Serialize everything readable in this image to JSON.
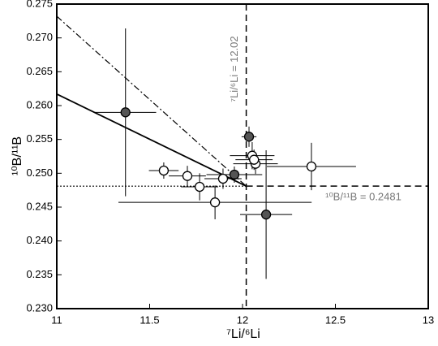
{
  "chart_data": {
    "type": "scatter",
    "x_label": "⁷Li/⁶Li",
    "y_label": "¹⁰B/¹¹B",
    "xlim": [
      11,
      13
    ],
    "ylim": [
      0.23,
      0.275
    ],
    "xticks": [
      11,
      11.5,
      12,
      12.5,
      13
    ],
    "yticks": [
      {
        "value": 0.23,
        "label": "0.230"
      },
      {
        "value": 0.235,
        "label": "0.235"
      },
      {
        "value": 0.24,
        "label": "0.240"
      },
      {
        "value": 0.245,
        "label": "0.245"
      },
      {
        "value": 0.25,
        "label": "0.250"
      },
      {
        "value": 0.255,
        "label": "0.255"
      },
      {
        "value": 0.26,
        "label": "0.260"
      },
      {
        "value": 0.265,
        "label": "0.265"
      },
      {
        "value": 0.27,
        "label": "0.270"
      },
      {
        "value": 0.275,
        "label": "0.275"
      }
    ],
    "series": [
      {
        "color": "#555555",
        "x": [
          11.37,
          12.035,
          11.956,
          12.127
        ],
        "y": [
          0.259,
          0.2554,
          0.2498,
          0.2439
        ],
        "xerr": [
          0.165,
          0.04,
          0.15,
          0.14
        ],
        "yerr": [
          0.0124,
          0.0015,
          0.0012,
          0.0095
        ]
      },
      {
        "color": "#ffffff",
        "x": [
          11.576,
          11.703,
          11.769,
          11.852,
          11.895,
          12.052,
          12.07,
          12.062,
          12.371
        ],
        "y": [
          0.2504,
          0.2496,
          0.248,
          0.2457,
          0.2492,
          0.2526,
          0.2514,
          0.252,
          0.251
        ],
        "xerr": [
          0.08,
          0.1,
          0.1,
          0.52,
          0.1,
          0.12,
          0.12,
          0.1,
          0.24
        ],
        "yerr": [
          0.0012,
          0.0015,
          0.002,
          0.0025,
          0.0015,
          0.002,
          0.0015,
          0.0015,
          0.0035
        ]
      }
    ],
    "lines": [
      {
        "style": "solid",
        "x": [
          11,
          12.02
        ],
        "y": [
          0.2617,
          0.2481
        ]
      },
      {
        "style": "dashdot",
        "x": [
          11,
          12.02
        ],
        "y": [
          0.2732,
          0.2481
        ]
      }
    ],
    "reference_lines": [
      {
        "orientation": "vertical",
        "value": 12.02,
        "label": "⁷Li/⁶Li = 12.02"
      },
      {
        "orientation": "horizontal",
        "value": 0.2481,
        "label": "¹⁰B/¹¹B = 0.2481"
      }
    ]
  }
}
